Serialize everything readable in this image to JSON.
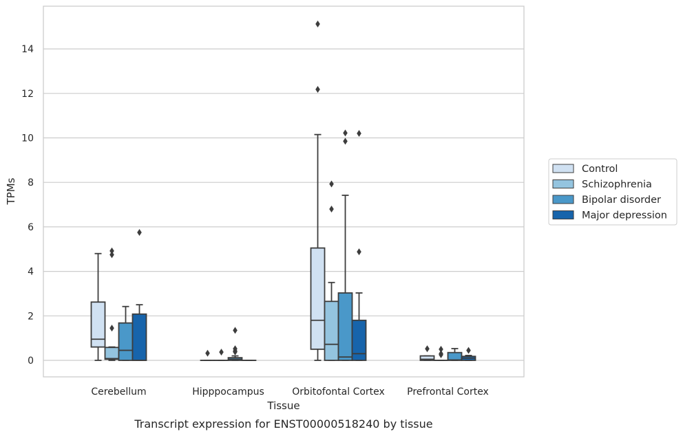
{
  "chart_data": {
    "type": "box",
    "xlabel": "Tissue",
    "ylabel": "TPMs",
    "caption": "Transcript expression for ENST00000518240 by tissue",
    "categories": [
      "Cerebellum",
      "Hipppocampus",
      "Orbitofontal Cortex",
      "Prefrontal Cortex"
    ],
    "ylim": [
      -0.7,
      15.6
    ],
    "yticks": [
      0,
      2,
      4,
      6,
      8,
      10,
      12,
      14
    ],
    "grid": "horizontal",
    "legend_position": "right",
    "colors": {
      "Control": "#d0e1f2",
      "Schizophrenia": "#94c4df",
      "Bipolar disorder": "#4a98c9",
      "Major depression": "#1764ab",
      "line": "#3d3d3d"
    },
    "series": [
      {
        "name": "Control",
        "boxes": [
          {
            "q1": 0.6,
            "median": 0.95,
            "q3": 2.62,
            "whislo": 0.0,
            "whishi": 4.8,
            "fliers": []
          },
          {
            "q1": 0.0,
            "median": 0.0,
            "q3": 0.0,
            "whislo": 0.0,
            "whishi": 0.0,
            "fliers": [
              0.32
            ]
          },
          {
            "q1": 0.5,
            "median": 1.8,
            "q3": 5.05,
            "whislo": 0.0,
            "whishi": 10.15,
            "fliers": [
              15.12,
              12.18
            ]
          },
          {
            "q1": 0.0,
            "median": 0.05,
            "q3": 0.2,
            "whislo": 0.0,
            "whishi": 0.2,
            "fliers": [
              0.52
            ]
          }
        ]
      },
      {
        "name": "Schizophrenia",
        "boxes": [
          {
            "q1": 0.05,
            "median": 0.08,
            "q3": 0.58,
            "whislo": 0.0,
            "whishi": 0.6,
            "fliers": [
              4.92,
              4.75,
              1.45
            ]
          },
          {
            "q1": 0.0,
            "median": 0.0,
            "q3": 0.0,
            "whislo": 0.0,
            "whishi": 0.0,
            "fliers": [
              0.37
            ]
          },
          {
            "q1": 0.0,
            "median": 0.72,
            "q3": 2.65,
            "whislo": 0.0,
            "whishi": 3.5,
            "fliers": [
              7.93,
              6.8
            ]
          },
          {
            "q1": 0.0,
            "median": 0.0,
            "q3": 0.0,
            "whislo": 0.0,
            "whishi": 0.0,
            "fliers": [
              0.5,
              0.3,
              0.25
            ]
          }
        ]
      },
      {
        "name": "Bipolar disorder",
        "boxes": [
          {
            "q1": 0.0,
            "median": 0.45,
            "q3": 1.68,
            "whislo": 0.0,
            "whishi": 2.42,
            "fliers": []
          },
          {
            "q1": 0.0,
            "median": 0.05,
            "q3": 0.12,
            "whislo": 0.0,
            "whishi": 0.2,
            "fliers": [
              1.35,
              0.52,
              0.42,
              0.38
            ]
          },
          {
            "q1": 0.0,
            "median": 0.15,
            "q3": 3.03,
            "whislo": 0.0,
            "whishi": 7.42,
            "fliers": [
              10.22,
              9.85
            ]
          },
          {
            "q1": 0.0,
            "median": 0.02,
            "q3": 0.35,
            "whislo": 0.0,
            "whishi": 0.53,
            "fliers": []
          }
        ]
      },
      {
        "name": "Major depression",
        "boxes": [
          {
            "q1": 0.0,
            "median": 0.0,
            "q3": 2.08,
            "whislo": 0.0,
            "whishi": 2.5,
            "fliers": [
              5.75
            ]
          },
          {
            "q1": 0.0,
            "median": 0.0,
            "q3": 0.0,
            "whislo": 0.0,
            "whishi": 0.0,
            "fliers": []
          },
          {
            "q1": 0.0,
            "median": 0.3,
            "q3": 1.8,
            "whislo": 0.0,
            "whishi": 3.03,
            "fliers": [
              10.2,
              4.88
            ]
          },
          {
            "q1": 0.0,
            "median": 0.1,
            "q3": 0.18,
            "whislo": 0.0,
            "whishi": 0.22,
            "fliers": [
              0.45
            ]
          }
        ]
      }
    ]
  }
}
